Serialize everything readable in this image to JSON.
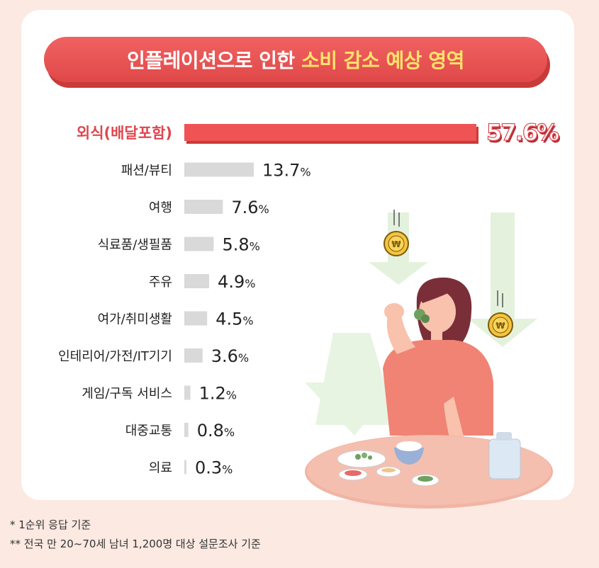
{
  "title": {
    "main": "인플레이션으로 인한 ",
    "highlight": "소비 감소 예상 영역"
  },
  "chart_data": {
    "type": "bar",
    "orientation": "horizontal",
    "unit": "%",
    "categories": [
      "외식(배달포함)",
      "패션/뷰티",
      "여행",
      "식료품/생필품",
      "주유",
      "여가/취미생활",
      "인테리어/가전/IT기기",
      "게임/구독 서비스",
      "대중교통",
      "의료"
    ],
    "values": [
      57.6,
      13.7,
      7.6,
      5.8,
      4.9,
      4.5,
      3.6,
      1.2,
      0.8,
      0.3
    ],
    "value_labels": [
      "57.6",
      "13.7",
      "7.6",
      "5.8",
      "4.9",
      "4.5",
      "3.6",
      "1.2",
      "0.8",
      "0.3"
    ],
    "highlight_index": 0,
    "colors": {
      "highlight": "#ef5353",
      "bar": "#d9d9d9",
      "highlight_text": "#e0464e",
      "text": "#222222"
    }
  },
  "footnotes": [
    "* 1순위 응답 기준",
    "** 전국 만 20~70세 남녀 1,200명 대상 설문조사 기준"
  ],
  "icons": [
    "coin-icon",
    "down-arrow-icon",
    "woman-eating-illustration",
    "dining-table-illustration"
  ]
}
